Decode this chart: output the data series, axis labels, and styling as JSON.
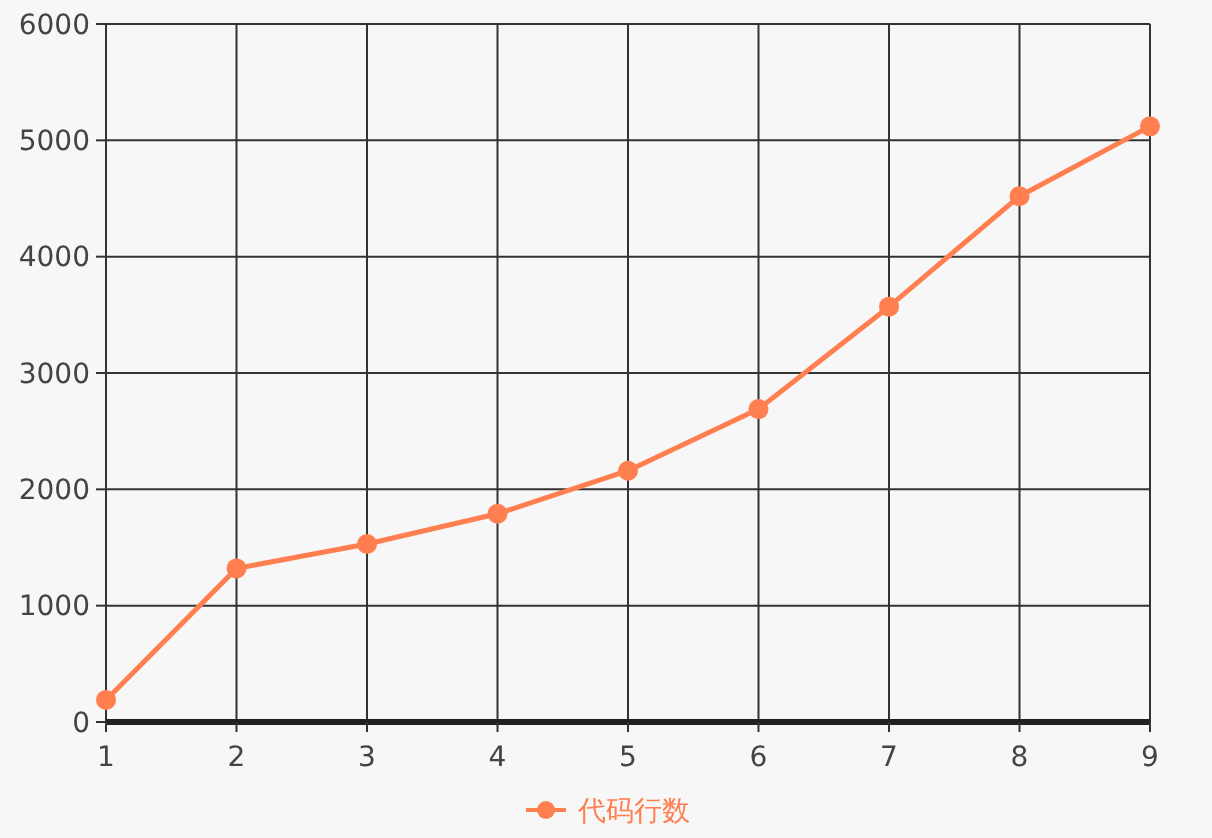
{
  "chart_data": {
    "type": "line",
    "x": [
      1,
      2,
      3,
      4,
      5,
      6,
      7,
      8,
      9
    ],
    "series": [
      {
        "name": "代码行数",
        "color": "#ff7f50",
        "values": [
          190,
          1320,
          1530,
          1790,
          2160,
          2690,
          3570,
          4520,
          5120
        ]
      }
    ],
    "xlim": [
      1,
      9
    ],
    "xticks": [
      1,
      2,
      3,
      4,
      5,
      6,
      7,
      8,
      9
    ],
    "ylim": [
      0,
      6000
    ],
    "yticks": [
      0,
      1000,
      2000,
      3000,
      4000,
      5000,
      6000
    ],
    "grid": true,
    "legend": "bottom",
    "marker": "circle",
    "line_style": "solid"
  }
}
